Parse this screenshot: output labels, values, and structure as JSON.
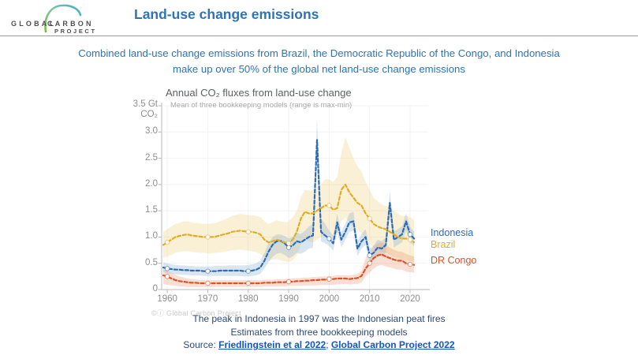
{
  "header": {
    "logo": {
      "word1": "GLOBAL",
      "word2": "CARBON",
      "word3": "PROJECT"
    },
    "title": "Land-use change emissions"
  },
  "intro": {
    "line1": "Combined land-use change emissions from Brazil, the Democratic Republic of the Congo, and Indonesia",
    "line2": "make up over 50% of the global net land-use change emissions"
  },
  "chart_data": {
    "type": "line",
    "title": "Annual CO₂ fluxes from land-use change",
    "subtitle": "Mean of three bookkeeping models (range is max-min)",
    "unit_top_line1": "3.5 Gt",
    "unit_top_line2": "CO₂",
    "ylabel": "Gt CO2",
    "ylim": [
      0,
      3.5
    ],
    "ytick_values": [
      0,
      0.5,
      1.0,
      1.5,
      2.0,
      2.5,
      3.0
    ],
    "ytick_labels": [
      "0",
      "0.5",
      "1.0",
      "1.5",
      "2.0",
      "2.5",
      "3.0"
    ],
    "xticks": [
      1960,
      1970,
      1980,
      1990,
      2000,
      2010,
      2020
    ],
    "grid": "faint horizontal and vertical at ticks",
    "legend_position": "right",
    "watermark": "©ⓘ Global Carbon Project",
    "years": [
      1959,
      1960,
      1961,
      1962,
      1963,
      1964,
      1965,
      1966,
      1967,
      1968,
      1969,
      1970,
      1971,
      1972,
      1973,
      1974,
      1975,
      1976,
      1977,
      1978,
      1979,
      1980,
      1981,
      1982,
      1983,
      1984,
      1985,
      1986,
      1987,
      1988,
      1989,
      1990,
      1991,
      1992,
      1993,
      1994,
      1995,
      1996,
      1997,
      1998,
      1999,
      2000,
      2001,
      2002,
      2003,
      2004,
      2005,
      2006,
      2007,
      2008,
      2009,
      2010,
      2011,
      2012,
      2013,
      2014,
      2015,
      2016,
      2017,
      2018,
      2019,
      2020,
      2021
    ],
    "series": [
      {
        "name": "Indonesia",
        "color": "#2E6CB0",
        "band_color": "rgba(120,165,210,0.28)",
        "values": [
          0.42,
          0.4,
          0.39,
          0.38,
          0.38,
          0.37,
          0.37,
          0.36,
          0.36,
          0.36,
          0.35,
          0.35,
          0.35,
          0.35,
          0.36,
          0.36,
          0.36,
          0.36,
          0.36,
          0.36,
          0.35,
          0.35,
          0.36,
          0.38,
          0.42,
          0.55,
          0.72,
          0.85,
          0.92,
          0.93,
          0.88,
          0.8,
          0.84,
          0.92,
          0.9,
          0.95,
          1.0,
          1.03,
          2.85,
          1.1,
          1.03,
          0.97,
          0.88,
          1.28,
          0.95,
          1.1,
          1.28,
          1.3,
          0.78,
          0.92,
          1.0,
          0.65,
          0.7,
          0.8,
          0.78,
          0.85,
          1.65,
          0.95,
          1.0,
          1.05,
          1.3,
          1.05,
          0.97
        ],
        "lo": [
          0.33,
          0.31,
          0.3,
          0.29,
          0.29,
          0.28,
          0.28,
          0.27,
          0.27,
          0.27,
          0.26,
          0.26,
          0.26,
          0.26,
          0.26,
          0.26,
          0.26,
          0.26,
          0.26,
          0.26,
          0.25,
          0.25,
          0.26,
          0.27,
          0.3,
          0.4,
          0.52,
          0.62,
          0.68,
          0.7,
          0.66,
          0.6,
          0.63,
          0.7,
          0.68,
          0.72,
          0.78,
          0.8,
          2.55,
          0.92,
          0.88,
          0.83,
          0.74,
          1.1,
          0.81,
          0.95,
          1.1,
          1.12,
          0.64,
          0.78,
          0.85,
          0.52,
          0.56,
          0.66,
          0.64,
          0.7,
          1.45,
          0.8,
          0.85,
          0.9,
          1.12,
          0.9,
          0.82
        ],
        "hi": [
          0.52,
          0.5,
          0.48,
          0.47,
          0.46,
          0.46,
          0.45,
          0.45,
          0.44,
          0.44,
          0.44,
          0.44,
          0.44,
          0.45,
          0.45,
          0.45,
          0.46,
          0.46,
          0.46,
          0.46,
          0.46,
          0.47,
          0.48,
          0.5,
          0.55,
          0.7,
          0.88,
          1.0,
          1.05,
          1.05,
          1.02,
          0.97,
          1.0,
          1.08,
          1.06,
          1.12,
          1.2,
          1.25,
          3.28,
          1.35,
          1.25,
          1.12,
          1.02,
          1.45,
          1.1,
          1.25,
          1.45,
          1.48,
          0.92,
          1.06,
          1.15,
          0.78,
          0.84,
          0.95,
          0.92,
          1.0,
          1.88,
          1.1,
          1.15,
          1.2,
          1.45,
          1.2,
          1.1
        ]
      },
      {
        "name": "Brazil",
        "color": "#DFAD2A",
        "band_color": "rgba(240,205,120,0.30)",
        "values": [
          0.85,
          0.9,
          0.95,
          1.0,
          1.02,
          1.04,
          1.05,
          1.03,
          1.02,
          1.01,
          1.0,
          1.0,
          1.0,
          1.01,
          1.03,
          1.05,
          1.07,
          1.1,
          1.11,
          1.12,
          1.11,
          1.1,
          1.1,
          1.08,
          1.05,
          0.95,
          0.9,
          0.92,
          0.95,
          0.93,
          0.9,
          0.88,
          0.95,
          1.1,
          1.35,
          1.48,
          1.45,
          1.45,
          1.5,
          1.55,
          1.6,
          1.6,
          1.52,
          1.55,
          1.9,
          2.0,
          1.85,
          1.75,
          1.65,
          1.6,
          1.45,
          1.35,
          1.25,
          1.2,
          1.17,
          1.15,
          1.1,
          1.05,
          1.0,
          0.97,
          0.97,
          0.95,
          0.9
        ],
        "lo": [
          0.6,
          0.63,
          0.66,
          0.7,
          0.72,
          0.73,
          0.73,
          0.72,
          0.71,
          0.7,
          0.7,
          0.69,
          0.69,
          0.7,
          0.71,
          0.72,
          0.73,
          0.75,
          0.75,
          0.76,
          0.75,
          0.74,
          0.73,
          0.71,
          0.68,
          0.6,
          0.56,
          0.57,
          0.58,
          0.56,
          0.54,
          0.52,
          0.56,
          0.65,
          0.85,
          0.95,
          0.92,
          0.9,
          0.95,
          1.0,
          1.05,
          1.05,
          1.0,
          1.05,
          1.3,
          1.38,
          1.28,
          1.2,
          1.12,
          1.08,
          0.95,
          0.88,
          0.8,
          0.75,
          0.72,
          0.7,
          0.66,
          0.62,
          0.6,
          0.57,
          0.56,
          0.55,
          0.52
        ],
        "hi": [
          1.1,
          1.15,
          1.2,
          1.25,
          1.27,
          1.3,
          1.3,
          1.28,
          1.27,
          1.26,
          1.25,
          1.25,
          1.26,
          1.27,
          1.3,
          1.33,
          1.36,
          1.4,
          1.42,
          1.44,
          1.43,
          1.42,
          1.42,
          1.4,
          1.38,
          1.3,
          1.25,
          1.28,
          1.32,
          1.3,
          1.28,
          1.3,
          1.38,
          1.5,
          1.75,
          1.9,
          1.88,
          1.9,
          1.95,
          2.0,
          2.1,
          2.1,
          2.05,
          2.15,
          2.6,
          2.9,
          2.7,
          2.5,
          2.35,
          2.25,
          2.05,
          1.9,
          1.75,
          1.68,
          1.62,
          1.6,
          1.55,
          1.5,
          1.45,
          1.4,
          1.4,
          1.38,
          1.32
        ]
      },
      {
        "name": "DR Congo",
        "color": "#D8532B",
        "band_color": "rgba(235,150,110,0.30)",
        "values": [
          0.27,
          0.25,
          0.21,
          0.18,
          0.16,
          0.15,
          0.14,
          0.13,
          0.13,
          0.12,
          0.12,
          0.12,
          0.12,
          0.12,
          0.12,
          0.12,
          0.12,
          0.12,
          0.12,
          0.12,
          0.12,
          0.12,
          0.12,
          0.12,
          0.12,
          0.13,
          0.13,
          0.13,
          0.14,
          0.14,
          0.14,
          0.15,
          0.15,
          0.16,
          0.16,
          0.17,
          0.17,
          0.18,
          0.18,
          0.19,
          0.19,
          0.2,
          0.2,
          0.21,
          0.21,
          0.21,
          0.2,
          0.21,
          0.22,
          0.26,
          0.4,
          0.5,
          0.6,
          0.65,
          0.67,
          0.63,
          0.6,
          0.57,
          0.55,
          0.55,
          0.5,
          0.48,
          0.47
        ],
        "lo": [
          0.1,
          0.09,
          0.08,
          0.07,
          0.06,
          0.06,
          0.05,
          0.05,
          0.05,
          0.05,
          0.05,
          0.05,
          0.05,
          0.05,
          0.05,
          0.05,
          0.05,
          0.05,
          0.05,
          0.05,
          0.05,
          0.05,
          0.05,
          0.05,
          0.05,
          0.06,
          0.06,
          0.06,
          0.06,
          0.06,
          0.06,
          0.07,
          0.07,
          0.07,
          0.07,
          0.08,
          0.08,
          0.08,
          0.08,
          0.09,
          0.09,
          0.09,
          0.09,
          0.1,
          0.1,
          0.1,
          0.1,
          0.1,
          0.11,
          0.13,
          0.25,
          0.32,
          0.4,
          0.45,
          0.47,
          0.44,
          0.42,
          0.4,
          0.38,
          0.38,
          0.34,
          0.33,
          0.32
        ],
        "hi": [
          0.38,
          0.36,
          0.32,
          0.28,
          0.25,
          0.23,
          0.21,
          0.2,
          0.19,
          0.18,
          0.18,
          0.18,
          0.18,
          0.18,
          0.18,
          0.18,
          0.18,
          0.18,
          0.18,
          0.18,
          0.18,
          0.18,
          0.18,
          0.18,
          0.18,
          0.19,
          0.19,
          0.19,
          0.2,
          0.2,
          0.2,
          0.21,
          0.21,
          0.22,
          0.22,
          0.23,
          0.23,
          0.24,
          0.24,
          0.25,
          0.25,
          0.26,
          0.26,
          0.27,
          0.27,
          0.27,
          0.27,
          0.28,
          0.3,
          0.36,
          0.6,
          0.72,
          0.82,
          0.88,
          0.9,
          0.85,
          0.8,
          0.76,
          0.73,
          0.72,
          0.68,
          0.65,
          0.63
        ]
      }
    ]
  },
  "footer": {
    "note1": "The peak in Indonesia in 1997 was the Indonesian peat fires",
    "note2": "Estimates from three bookkeeping models",
    "source_prefix": "Source: ",
    "separator": "; ",
    "links": [
      {
        "label": "Friedlingstein et al 2022"
      },
      {
        "label": "Global Carbon Project 2022"
      }
    ]
  },
  "colors": {
    "accent_blue": "#2E74B5",
    "footer_navy": "#2B4A7A",
    "link_blue": "#1155CC",
    "axis_gray": "#b8b8b8",
    "tick_text_gray": "#8e8e8e"
  }
}
